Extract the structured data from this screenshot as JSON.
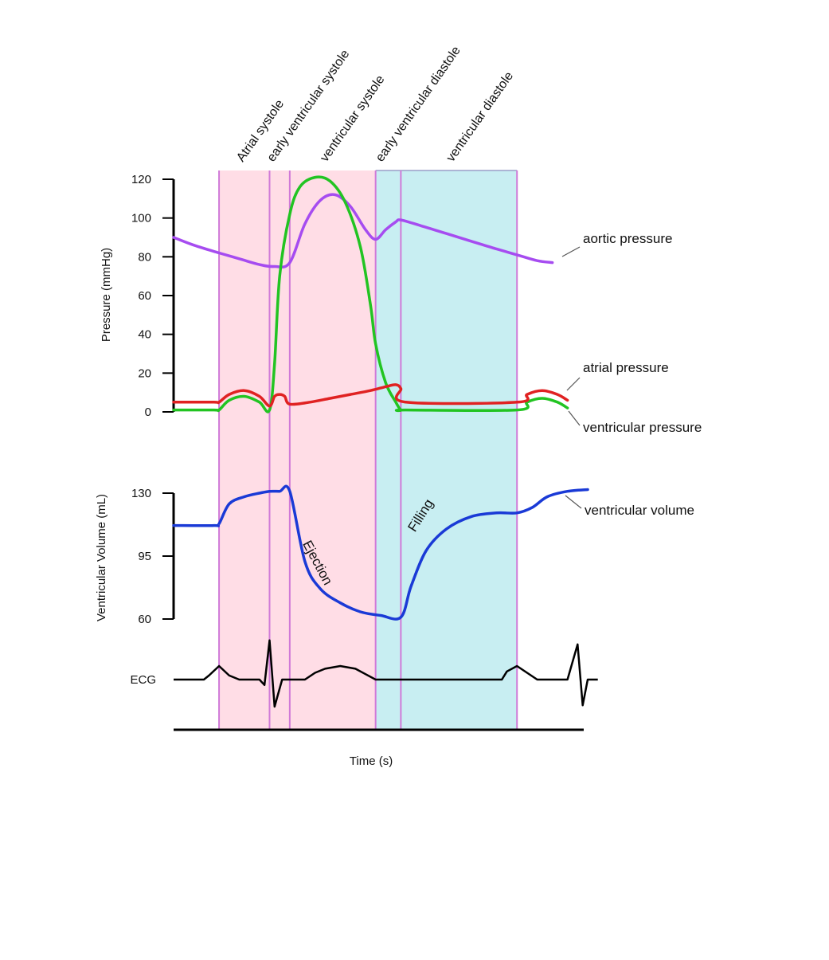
{
  "chart_data": {
    "type": "line",
    "phases": [
      {
        "name": "Atrial systole",
        "x_start": 0.0,
        "x_end": 0.1,
        "color": "#ffdde6"
      },
      {
        "name": "early ventricular systole",
        "x_start": 0.1,
        "x_end": 0.14,
        "color": "#ffdde6"
      },
      {
        "name": "ventricular systole",
        "x_start": 0.14,
        "x_end": 0.31,
        "color": "#ffdde6"
      },
      {
        "name": "early ventricular diastole",
        "x_start": 0.31,
        "x_end": 0.36,
        "color": "#c8eef2"
      },
      {
        "name": "ventricular diastole",
        "x_start": 0.36,
        "x_end": 0.59,
        "color": "#c8eef2"
      }
    ],
    "x_range": [
      -0.09,
      0.73
    ],
    "pressure_panel": {
      "ylabel": "Pressure (mmHg)",
      "ylim": [
        0,
        120
      ],
      "yticks": [
        0,
        20,
        40,
        60,
        80,
        100,
        120
      ],
      "series": [
        {
          "name": "aortic pressure",
          "color": "#a64cf0",
          "x": [
            -0.09,
            -0.05,
            0.0,
            0.04,
            0.08,
            0.11,
            0.14,
            0.17,
            0.2,
            0.23,
            0.26,
            0.29,
            0.31,
            0.33,
            0.35,
            0.36,
            0.4,
            0.45,
            0.5,
            0.55,
            0.59,
            0.63,
            0.66
          ],
          "values": [
            90,
            86,
            82,
            79,
            76,
            75,
            77,
            97,
            109,
            112,
            106,
            94,
            89,
            94,
            98,
            99,
            96,
            92,
            88,
            84,
            81,
            78,
            77
          ]
        },
        {
          "name": "ventricular pressure",
          "color": "#22c422",
          "x": [
            -0.09,
            -0.01,
            0.0,
            0.02,
            0.05,
            0.08,
            0.1,
            0.11,
            0.12,
            0.14,
            0.16,
            0.19,
            0.22,
            0.25,
            0.28,
            0.3,
            0.31,
            0.33,
            0.35,
            0.36,
            0.37,
            0.59,
            0.61,
            0.64,
            0.67,
            0.69
          ],
          "values": [
            1,
            1,
            1,
            6,
            8,
            5,
            1,
            25,
            70,
            102,
            116,
            121,
            119,
            108,
            85,
            55,
            35,
            15,
            5,
            1,
            1,
            1,
            5,
            7,
            5,
            2
          ]
        },
        {
          "name": "atrial pressure",
          "color": "#e02222",
          "x": [
            -0.09,
            -0.01,
            0.0,
            0.02,
            0.05,
            0.08,
            0.1,
            0.11,
            0.12,
            0.13,
            0.14,
            0.18,
            0.22,
            0.26,
            0.3,
            0.33,
            0.35,
            0.36,
            0.37,
            0.59,
            0.61,
            0.64,
            0.67,
            0.69
          ],
          "values": [
            5,
            5,
            5,
            9,
            11,
            8,
            3,
            8,
            9,
            8,
            4,
            5,
            7,
            9,
            11,
            13,
            14,
            12,
            5,
            5,
            9,
            11,
            9,
            6
          ]
        }
      ]
    },
    "volume_panel": {
      "ylabel": "Ventricular Volume (mL)",
      "ylim": [
        60,
        130
      ],
      "yticks": [
        60,
        95,
        130
      ],
      "series": [
        {
          "name": "ventricular volume",
          "color": "#1a3ad6",
          "x": [
            -0.09,
            -0.01,
            0.0,
            0.02,
            0.05,
            0.08,
            0.1,
            0.12,
            0.14,
            0.17,
            0.2,
            0.24,
            0.28,
            0.32,
            0.36,
            0.38,
            0.41,
            0.45,
            0.5,
            0.55,
            0.59,
            0.62,
            0.65,
            0.69,
            0.73
          ],
          "values": [
            112,
            112,
            113,
            124,
            128,
            130,
            131,
            131,
            131,
            92,
            77,
            69,
            64,
            62,
            61,
            78,
            98,
            110,
            117,
            119,
            119,
            122,
            128,
            131,
            132
          ]
        }
      ]
    },
    "ecg": {
      "name": "ECG",
      "x": [
        -0.09,
        -0.03,
        -0.02,
        0.0,
        0.02,
        0.04,
        0.06,
        0.08,
        0.09,
        0.1,
        0.11,
        0.125,
        0.14,
        0.17,
        0.19,
        0.21,
        0.24,
        0.27,
        0.29,
        0.31,
        0.33,
        0.37,
        0.56,
        0.57,
        0.59,
        0.61,
        0.63,
        0.69,
        0.71,
        0.72,
        0.73,
        0.75
      ],
      "values": [
        0,
        0,
        0.3,
        1.0,
        0.3,
        0,
        0,
        0,
        -0.4,
        2.9,
        -2.0,
        0,
        0,
        0,
        0.5,
        0.8,
        1.0,
        0.8,
        0.4,
        0,
        0,
        0,
        0,
        0.6,
        1.0,
        0.5,
        0,
        0,
        2.6,
        -1.9,
        0,
        0
      ]
    },
    "annotations": [
      {
        "text": "aortic pressure",
        "series": "aortic pressure"
      },
      {
        "text": "atrial pressure",
        "series": "atrial pressure"
      },
      {
        "text": "ventricular pressure",
        "series": "ventricular pressure"
      },
      {
        "text": "ventricular volume",
        "series": "ventricular volume"
      },
      {
        "text": "Ejection",
        "series": "ventricular volume"
      },
      {
        "text": "Filling",
        "series": "ventricular volume"
      }
    ],
    "xlabel": "Time (s)",
    "grid": false
  }
}
